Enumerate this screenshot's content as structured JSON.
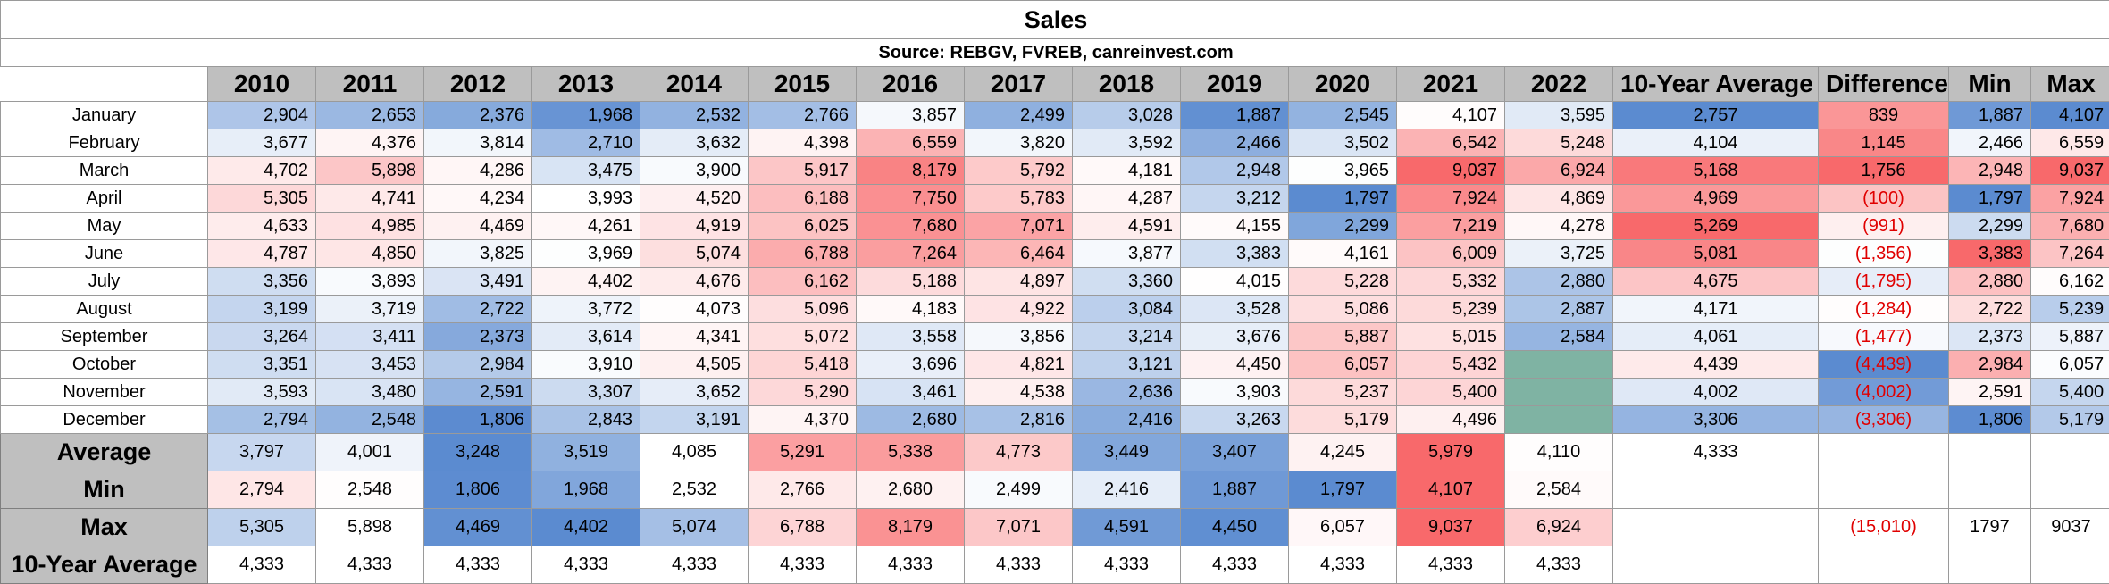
{
  "title": "Sales",
  "source": "Source: REBGV, FVREB, canreinvest.com",
  "headers": [
    "2010",
    "2011",
    "2012",
    "2013",
    "2014",
    "2015",
    "2016",
    "2017",
    "2018",
    "2019",
    "2020",
    "2021",
    "2022",
    "10-Year Average",
    "Difference",
    "Min",
    "Max"
  ],
  "colors": {
    "low": "#5b8bd0",
    "mid": "#ffffff",
    "high": "#f8696b",
    "empty": "#7fb3a3",
    "header": "#bfbfbf",
    "negative_text": "#e00000"
  },
  "months": [
    {
      "name": "January",
      "values": [
        "2,904",
        "2,653",
        "2,376",
        "1,968",
        "2,532",
        "2,766",
        "3,857",
        "2,499",
        "3,028",
        "1,887",
        "2,545",
        "4,107",
        "3,595"
      ],
      "avg": "2,757",
      "diff": "839",
      "min": "1,887",
      "max": "4,107"
    },
    {
      "name": "February",
      "values": [
        "3,677",
        "4,376",
        "3,814",
        "2,710",
        "3,632",
        "4,398",
        "6,559",
        "3,820",
        "3,592",
        "2,466",
        "3,502",
        "6,542",
        "5,248"
      ],
      "avg": "4,104",
      "diff": "1,145",
      "min": "2,466",
      "max": "6,559"
    },
    {
      "name": "March",
      "values": [
        "4,702",
        "5,898",
        "4,286",
        "3,475",
        "3,900",
        "5,917",
        "8,179",
        "5,792",
        "4,181",
        "2,948",
        "3,965",
        "9,037",
        "6,924"
      ],
      "avg": "5,168",
      "diff": "1,756",
      "min": "2,948",
      "max": "9,037"
    },
    {
      "name": "April",
      "values": [
        "5,305",
        "4,741",
        "4,234",
        "3,993",
        "4,520",
        "6,188",
        "7,750",
        "5,783",
        "4,287",
        "3,212",
        "1,797",
        "7,924",
        "4,869"
      ],
      "avg": "4,969",
      "diff": "(100)",
      "min": "1,797",
      "max": "7,924"
    },
    {
      "name": "May",
      "values": [
        "4,633",
        "4,985",
        "4,469",
        "4,261",
        "4,919",
        "6,025",
        "7,680",
        "7,071",
        "4,591",
        "4,155",
        "2,299",
        "7,219",
        "4,278"
      ],
      "avg": "5,269",
      "diff": "(991)",
      "min": "2,299",
      "max": "7,680"
    },
    {
      "name": "June",
      "values": [
        "4,787",
        "4,850",
        "3,825",
        "3,969",
        "5,074",
        "6,788",
        "7,264",
        "6,464",
        "3,877",
        "3,383",
        "4,161",
        "6,009",
        "3,725"
      ],
      "avg": "5,081",
      "diff": "(1,356)",
      "min": "3,383",
      "max": "7,264"
    },
    {
      "name": "July",
      "values": [
        "3,356",
        "3,893",
        "3,491",
        "4,402",
        "4,676",
        "6,162",
        "5,188",
        "4,897",
        "3,360",
        "4,015",
        "5,228",
        "5,332",
        "2,880"
      ],
      "avg": "4,675",
      "diff": "(1,795)",
      "min": "2,880",
      "max": "6,162"
    },
    {
      "name": "August",
      "values": [
        "3,199",
        "3,719",
        "2,722",
        "3,772",
        "4,073",
        "5,096",
        "4,183",
        "4,922",
        "3,084",
        "3,528",
        "5,086",
        "5,239",
        "2,887"
      ],
      "avg": "4,171",
      "diff": "(1,284)",
      "min": "2,722",
      "max": "5,239"
    },
    {
      "name": "September",
      "values": [
        "3,264",
        "3,411",
        "2,373",
        "3,614",
        "4,341",
        "5,072",
        "3,558",
        "3,856",
        "3,214",
        "3,676",
        "5,887",
        "5,015",
        "2,584"
      ],
      "avg": "4,061",
      "diff": "(1,477)",
      "min": "2,373",
      "max": "5,887"
    },
    {
      "name": "October",
      "values": [
        "3,351",
        "3,453",
        "2,984",
        "3,910",
        "4,505",
        "5,418",
        "3,696",
        "4,821",
        "3,121",
        "4,450",
        "6,057",
        "5,432",
        ""
      ],
      "avg": "4,439",
      "diff": "(4,439)",
      "min": "2,984",
      "max": "6,057"
    },
    {
      "name": "November",
      "values": [
        "3,593",
        "3,480",
        "2,591",
        "3,307",
        "3,652",
        "5,290",
        "3,461",
        "4,538",
        "2,636",
        "3,903",
        "5,237",
        "5,400",
        ""
      ],
      "avg": "4,002",
      "diff": "(4,002)",
      "min": "2,591",
      "max": "5,400"
    },
    {
      "name": "December",
      "values": [
        "2,794",
        "2,548",
        "1,806",
        "2,843",
        "3,191",
        "4,370",
        "2,680",
        "2,816",
        "2,416",
        "3,263",
        "5,179",
        "4,496",
        ""
      ],
      "avg": "3,306",
      "diff": "(3,306)",
      "min": "1,806",
      "max": "5,179"
    }
  ],
  "summary": [
    {
      "label": "Average",
      "values": [
        "3,797",
        "4,001",
        "3,248",
        "3,519",
        "4,085",
        "5,291",
        "5,338",
        "4,773",
        "3,449",
        "3,407",
        "4,245",
        "5,979",
        "4,110"
      ],
      "avg": "4,333",
      "diff": "",
      "min": "",
      "max": ""
    },
    {
      "label": "Min",
      "values": [
        "2,794",
        "2,548",
        "1,806",
        "1,968",
        "2,532",
        "2,766",
        "2,680",
        "2,499",
        "2,416",
        "1,887",
        "1,797",
        "4,107",
        "2,584"
      ],
      "avg": "",
      "diff": "",
      "min": "",
      "max": ""
    },
    {
      "label": "Max",
      "values": [
        "5,305",
        "5,898",
        "4,469",
        "4,402",
        "5,074",
        "6,788",
        "8,179",
        "7,071",
        "4,591",
        "4,450",
        "6,057",
        "9,037",
        "6,924"
      ],
      "avg": "",
      "diff": "(15,010)",
      "min": "1797",
      "max": "9037"
    },
    {
      "label": "10-Year Average",
      "values": [
        "4,333",
        "4,333",
        "4,333",
        "4,333",
        "4,333",
        "4,333",
        "4,333",
        "4,333",
        "4,333",
        "4,333",
        "4,333",
        "4,333",
        "4,333"
      ],
      "avg": "",
      "diff": "",
      "min": "",
      "max": ""
    }
  ]
}
